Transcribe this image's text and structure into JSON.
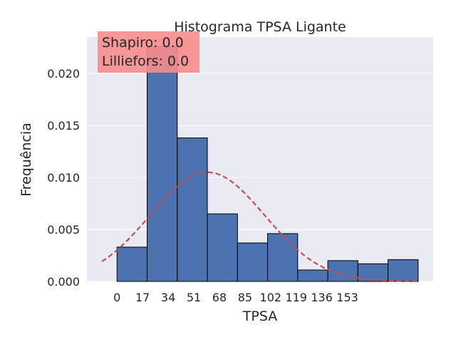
{
  "chart_data": {
    "type": "bar",
    "title": "Histograma TPSA Ligante",
    "xlabel": "TPSA",
    "ylabel": "Frequência",
    "bin_edges": [
      0,
      20,
      40,
      60,
      80,
      100,
      120,
      140,
      160,
      180,
      200
    ],
    "values": [
      0.0033,
      0.0226,
      0.0138,
      0.0065,
      0.0037,
      0.0046,
      0.0011,
      0.002,
      0.0017,
      0.0021
    ],
    "x_ticks": [
      0,
      17,
      34,
      51,
      68,
      85,
      102,
      119,
      136,
      153
    ],
    "y_ticks": [
      "0.000",
      "0.005",
      "0.010",
      "0.015",
      "0.020"
    ],
    "xlim": [
      -20,
      210
    ],
    "ylim": [
      0,
      0.0235
    ],
    "grid": true,
    "normal_curve": {
      "mean": 60,
      "std": 38,
      "style": "dashed",
      "color": "#c44e52"
    },
    "annotation": {
      "lines": [
        "Shapiro: 0.0",
        "Lilliefors: 0.0"
      ],
      "box_color": "#f88d8d"
    },
    "bar_color": "#4c72b0",
    "background_color": "#eaeaf2"
  }
}
